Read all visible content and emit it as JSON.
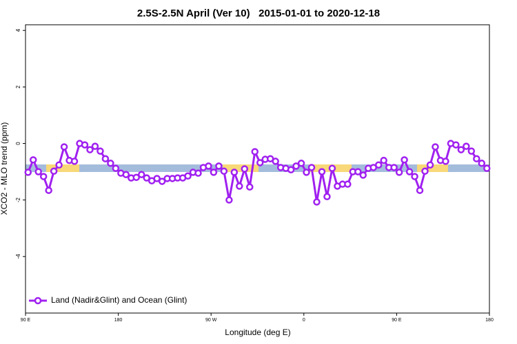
{
  "chart_data": {
    "type": "line",
    "title": "2.5S-2.5N April (Ver 10)   2015-01-01 to 2020-12-18",
    "xlabel": "Longitude (deg E)",
    "ylabel": "XCO2 - MLO trend (ppm)",
    "x": [
      92.5,
      97.5,
      102.5,
      107.5,
      112.5,
      117.5,
      122.5,
      127.5,
      132.5,
      137.5,
      142.5,
      147.5,
      152.5,
      157.5,
      162.5,
      167.5,
      172.5,
      177.5,
      182.5,
      187.5,
      192.5,
      197.5,
      202.5,
      207.5,
      212.5,
      217.5,
      222.5,
      227.5,
      232.5,
      237.5,
      242.5,
      247.5,
      252.5,
      257.5,
      262.5,
      267.5,
      272.5,
      277.5,
      282.5,
      287.5,
      292.5,
      297.5,
      302.5,
      307.5,
      312.5,
      317.5,
      322.5,
      327.5,
      332.5,
      337.5,
      342.5,
      347.5,
      352.5,
      357.5,
      362.5,
      367.5,
      372.5,
      377.5,
      382.5,
      387.5,
      392.5,
      397.5,
      402.5,
      407.5,
      412.5,
      417.5,
      422.5,
      427.5,
      432.5,
      437.5,
      442.5,
      447.5,
      452.5,
      457.5,
      462.5,
      467.5,
      472.5,
      477.5,
      482.5,
      487.5,
      492.5,
      497.5,
      502.5,
      507.5,
      512.5,
      517.5,
      522.5,
      527.5,
      532.5,
      537.5
    ],
    "series": [
      {
        "name": "Land (Nadir&Glint) and Ocean (Glint)",
        "color": "#a020f0",
        "values": [
          -1.02,
          -0.58,
          -1.0,
          -1.17,
          -1.66,
          -0.98,
          -0.76,
          -0.12,
          -0.6,
          -0.63,
          0,
          -0.05,
          -0.22,
          -0.1,
          -0.27,
          -0.54,
          -0.7,
          -0.88,
          -1.05,
          -1.1,
          -1.22,
          -1.2,
          -1.1,
          -1.22,
          -1.32,
          -1.24,
          -1.34,
          -1.24,
          -1.24,
          -1.22,
          -1.22,
          -1.15,
          -1.02,
          -1.05,
          -0.85,
          -0.8,
          -1.02,
          -0.8,
          -0.98,
          -2.0,
          -1.02,
          -1.51,
          -0.9,
          -1.54,
          -0.29,
          -0.68,
          -0.56,
          -0.54,
          -0.63,
          -0.85,
          -0.88,
          -0.93,
          -0.8,
          -0.7,
          -1.02,
          -0.85,
          -2.07,
          -1.0,
          -1.88,
          -0.88,
          -1.51,
          -1.44,
          -1.44,
          -1.0,
          -1.0,
          -1.12,
          -0.88,
          -0.85,
          -0.76,
          -0.6,
          -0.85,
          -0.85,
          -1.02,
          -0.58,
          -1.0,
          -1.17,
          -1.66,
          -0.98,
          -0.76,
          -0.12,
          -0.6,
          -0.63,
          0,
          -0.05,
          -0.22,
          -0.1,
          -0.27,
          -0.54,
          -0.7,
          -0.88
        ]
      }
    ],
    "xlim": [
      90,
      540
    ],
    "xticks": [
      {
        "value": 90,
        "label": "90 E"
      },
      180,
      {
        "value": 270,
        "label": "90 W"
      },
      {
        "value": 360,
        "label": "0"
      },
      {
        "value": 450,
        "label": "90 E"
      },
      {
        "value": 540,
        "label": "180"
      }
    ],
    "ylim": [
      -6,
      4.2
    ],
    "yticks": [
      -4,
      -2,
      0,
      2,
      4
    ],
    "legend": "bottom-left"
  }
}
